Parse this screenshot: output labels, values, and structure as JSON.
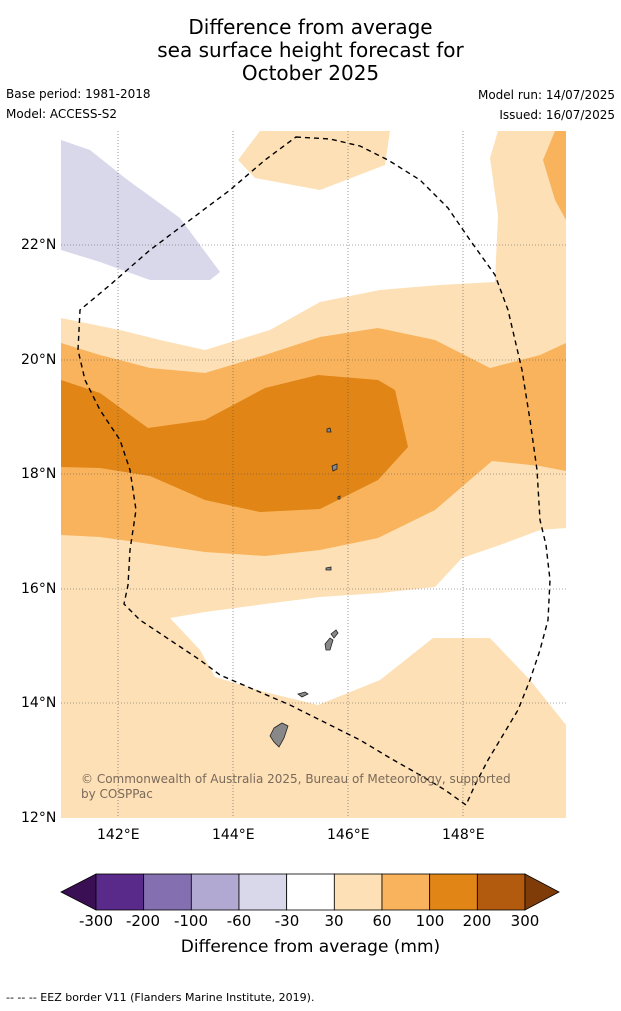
{
  "title_lines": [
    "Difference from average",
    "sea surface height forecast for",
    "October 2025"
  ],
  "base_period": "Base period: 1981-2018",
  "model": "Model: ACCESS-S2",
  "model_run": "Model run: 14/07/2025",
  "issued": "Issued: 16/07/2025",
  "credit": "© Commonwealth of Australia 2025, Bureau of Meteorology, supported by COSPPac",
  "lat_labels": [
    "22°N",
    "20°N",
    "18°N",
    "16°N",
    "14°N",
    "12°N"
  ],
  "lon_labels": [
    "142°E",
    "144°E",
    "146°E",
    "148°E"
  ],
  "colorbar": {
    "labels": [
      "-300",
      "-200",
      "-100",
      "-60",
      "-30",
      "30",
      "60",
      "100",
      "200",
      "300"
    ],
    "colors": [
      "#3b0f54",
      "#5a2a8a",
      "#8470b0",
      "#b2a9d3",
      "#d8d8ea",
      "#ffffff",
      "#fde0b5",
      "#f8b35c",
      "#e08516",
      "#b25a0d",
      "#7f3c08"
    ],
    "title": "Difference from average (mm)"
  },
  "footer": "--  --  -- EEZ border V11 (Flanders Marine Institute, 2019)."
}
